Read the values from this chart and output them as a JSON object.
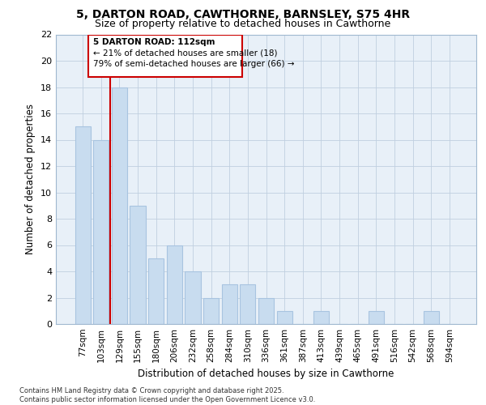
{
  "title1": "5, DARTON ROAD, CAWTHORNE, BARNSLEY, S75 4HR",
  "title2": "Size of property relative to detached houses in Cawthorne",
  "xlabel": "Distribution of detached houses by size in Cawthorne",
  "ylabel": "Number of detached properties",
  "categories": [
    "77sqm",
    "103sqm",
    "129sqm",
    "155sqm",
    "180sqm",
    "206sqm",
    "232sqm",
    "258sqm",
    "284sqm",
    "310sqm",
    "336sqm",
    "361sqm",
    "387sqm",
    "413sqm",
    "439sqm",
    "465sqm",
    "491sqm",
    "516sqm",
    "542sqm",
    "568sqm",
    "594sqm"
  ],
  "values": [
    15,
    14,
    18,
    9,
    5,
    6,
    4,
    2,
    3,
    3,
    2,
    1,
    0,
    1,
    0,
    0,
    1,
    0,
    0,
    1,
    0
  ],
  "bar_color": "#c8dcef",
  "bar_edge_color": "#a8c4e0",
  "axes_bg_color": "#e8f0f8",
  "vline_x_idx": 1.5,
  "vline_color": "#cc0000",
  "annotation_box_color": "#cc0000",
  "annotation_text_line1": "5 DARTON ROAD: 112sqm",
  "annotation_text_line2": "← 21% of detached houses are smaller (18)",
  "annotation_text_line3": "79% of semi-detached houses are larger (66) →",
  "ylim": [
    0,
    22
  ],
  "yticks": [
    0,
    2,
    4,
    6,
    8,
    10,
    12,
    14,
    16,
    18,
    20,
    22
  ],
  "footnote1": "Contains HM Land Registry data © Crown copyright and database right 2025.",
  "footnote2": "Contains public sector information licensed under the Open Government Licence v3.0.",
  "bg_color": "#ffffff",
  "grid_color": "#c0cfe0"
}
